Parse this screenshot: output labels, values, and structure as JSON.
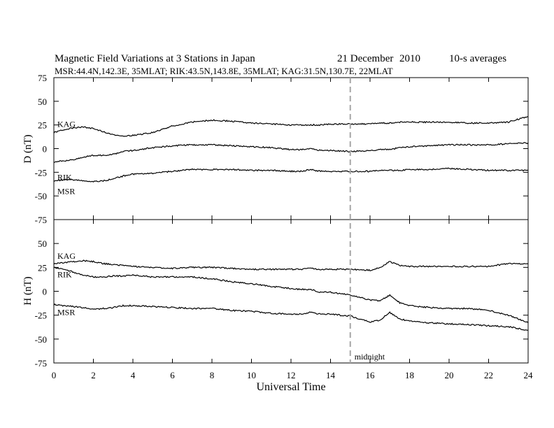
{
  "header": {
    "title": "Magnetic Field Variations at 3 Stations in Japan",
    "date": "21 December",
    "year": "2010",
    "averaging": "10-s averages",
    "stations_line": "MSR:44.4N,142.3E, 35MLAT;  RIK:43.5N,143.8E, 35MLAT;  KAG:31.5N,130.7E, 22MLAT"
  },
  "colors": {
    "trace": "#000000",
    "midnight_line": "#a6a6a6"
  },
  "chart_data": [
    {
      "type": "line",
      "panel": "D",
      "ylabel": "D (nT)",
      "ylim": [
        -75,
        75
      ],
      "yticks": [
        75,
        50,
        25,
        0,
        -25,
        -50,
        -75
      ],
      "xlim": [
        0,
        24
      ],
      "xticks": [
        0,
        2,
        4,
        6,
        8,
        10,
        12,
        14,
        16,
        18,
        20,
        22,
        24
      ],
      "grid": false,
      "x": [
        0,
        0.5,
        1,
        1.5,
        2,
        2.5,
        3,
        3.5,
        4,
        5,
        6,
        7,
        8,
        9,
        10,
        11,
        12,
        12.5,
        13,
        13.5,
        14,
        15,
        16,
        16.5,
        17,
        17.5,
        18,
        19,
        20,
        21,
        22,
        23,
        24
      ],
      "series": [
        {
          "name": "KAG",
          "values": [
            17,
            20,
            22,
            23,
            21,
            18,
            15,
            13,
            14,
            17,
            24,
            28,
            30,
            29,
            27,
            26,
            25,
            25,
            25,
            25,
            26,
            26,
            26,
            27,
            27,
            28,
            28,
            28,
            28,
            27,
            27,
            28,
            34
          ]
        },
        {
          "name": "RIK",
          "values": [
            -14,
            -13,
            -12,
            -9,
            -7,
            -7,
            -6,
            -3,
            -2,
            1,
            3,
            4,
            4,
            3,
            2,
            1,
            -1,
            -1,
            0,
            -2,
            -2,
            -3,
            -2,
            -1,
            -1,
            1,
            2,
            3,
            4,
            4,
            4,
            5,
            6
          ]
        },
        {
          "name": "MSR",
          "values": [
            -34,
            -33,
            -33,
            -34,
            -35,
            -34,
            -32,
            -29,
            -27,
            -26,
            -24,
            -22,
            -22,
            -22,
            -23,
            -23,
            -24,
            -24,
            -22,
            -24,
            -24,
            -24,
            -24,
            -23,
            -23,
            -23,
            -22,
            -22,
            -21,
            -22,
            -23,
            -23,
            -23
          ]
        }
      ]
    },
    {
      "type": "line",
      "panel": "H",
      "ylabel": "H (nT)",
      "ylim": [
        -75,
        75
      ],
      "yticks": [
        75,
        50,
        25,
        0,
        -25,
        -50,
        -75
      ],
      "xlim": [
        0,
        24
      ],
      "xticks": [
        0,
        2,
        4,
        6,
        8,
        10,
        12,
        14,
        16,
        18,
        20,
        22,
        24
      ],
      "xlabel": "Universal Time",
      "grid": false,
      "x": [
        0,
        0.5,
        1,
        1.5,
        2,
        2.5,
        3,
        3.5,
        4,
        5,
        6,
        7,
        8,
        9,
        10,
        11,
        12,
        12.5,
        13,
        13.5,
        14,
        15,
        16,
        16.5,
        17,
        17.5,
        18,
        19,
        20,
        21,
        22,
        23,
        24
      ],
      "series": [
        {
          "name": "KAG",
          "values": [
            29,
            30,
            31,
            32,
            31,
            29,
            28,
            27,
            26,
            25,
            24,
            25,
            25,
            24,
            23,
            23,
            23,
            23,
            24,
            23,
            23,
            23,
            22,
            25,
            31,
            27,
            26,
            26,
            26,
            26,
            26,
            29,
            29
          ]
        },
        {
          "name": "RIK",
          "values": [
            25,
            23,
            20,
            17,
            15,
            15,
            16,
            16,
            17,
            15,
            15,
            15,
            13,
            10,
            8,
            5,
            3,
            2,
            2,
            -1,
            -1,
            -4,
            -9,
            -10,
            -4,
            -12,
            -15,
            -17,
            -18,
            -18,
            -20,
            -25,
            -33
          ]
        },
        {
          "name": "MSR",
          "values": [
            -14,
            -15,
            -16,
            -17,
            -19,
            -18,
            -17,
            -15,
            -15,
            -16,
            -17,
            -18,
            -18,
            -20,
            -21,
            -23,
            -24,
            -24,
            -22,
            -24,
            -24,
            -26,
            -32,
            -30,
            -22,
            -29,
            -31,
            -33,
            -34,
            -35,
            -36,
            -37,
            -41
          ]
        }
      ]
    }
  ],
  "midnight": {
    "x": 15,
    "label": "midnight"
  }
}
